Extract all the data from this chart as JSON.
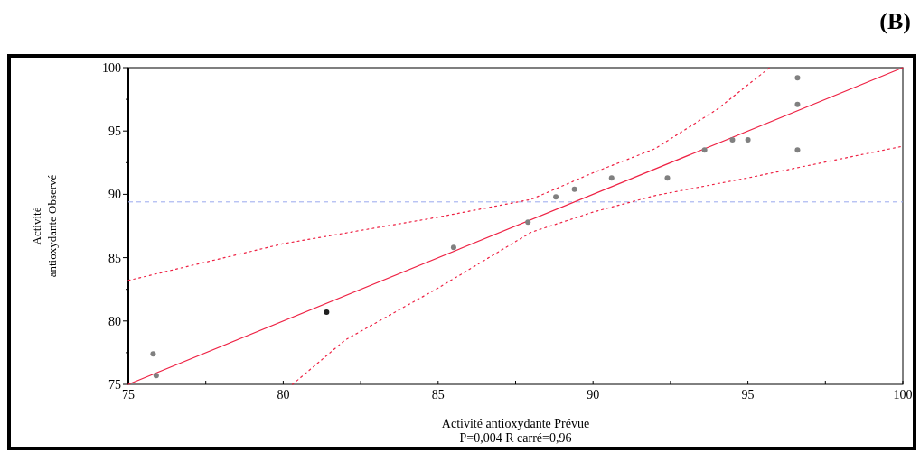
{
  "chart_data": {
    "type": "scatter",
    "xlabel": "Activité antioxydante Prévue",
    "ylabel": "Activité\nantioxydante Observé",
    "annotations": [
      "P=0,004 R carré=0,96",
      "(B)"
    ],
    "xlim": [
      75,
      100
    ],
    "ylim": [
      75,
      100
    ],
    "xticks": [
      75,
      {
        "value": 77.5,
        "label": null
      },
      80,
      {
        "value": 82.5,
        "label": null
      },
      85,
      {
        "value": 87.5,
        "label": null
      },
      90,
      {
        "value": 92.5,
        "label": null
      },
      95,
      {
        "value": 97.5,
        "label": null
      },
      100
    ],
    "yticks": [
      75,
      {
        "value": 77.5,
        "label": null
      },
      80,
      {
        "value": 82.5,
        "label": null
      },
      85,
      {
        "value": 87.5,
        "label": null
      },
      90,
      {
        "value": 92.5,
        "label": null
      },
      95,
      {
        "value": 97.5,
        "label": null
      },
      100
    ],
    "grid": false,
    "marker": "circle",
    "ref_lines": [
      {
        "axis": "y",
        "value": 89.4,
        "color": "#9aa8ee",
        "line_style": "dashed"
      }
    ],
    "series": [
      {
        "x": [
          75.8,
          75.9,
          81.4,
          85.5,
          87.9,
          88.8,
          89.4,
          90.6,
          92.4,
          93.6,
          94.5,
          95.0,
          96.6,
          96.6,
          96.6
        ],
        "values": [
          77.4,
          75.7,
          80.7,
          85.8,
          87.8,
          89.8,
          90.4,
          91.3,
          91.3,
          93.5,
          94.3,
          94.3,
          93.5,
          97.1,
          99.2
        ],
        "colors": [
          "#808080",
          "#808080",
          "#202020",
          "#808080",
          "#808080",
          "#808080",
          "#808080",
          "#808080",
          "#808080",
          "#808080",
          "#808080",
          "#808080",
          "#808080",
          "#808080",
          "#808080"
        ]
      },
      {
        "type": "line",
        "color": "#ee2244",
        "line_style": "solid",
        "marker": "none",
        "x": [
          75,
          100
        ],
        "values": [
          75,
          100
        ]
      },
      {
        "type": "line",
        "color": "#ee2244",
        "line_style": "dotted",
        "marker": "none",
        "x": [
          75,
          80,
          85,
          88,
          90,
          92,
          94,
          95.7
        ],
        "values": [
          83.2,
          86.1,
          88.2,
          89.6,
          91.7,
          93.6,
          96.7,
          100
        ]
      },
      {
        "type": "line",
        "color": "#ee2244",
        "line_style": "dotted",
        "marker": "none",
        "x": [
          80.3,
          82,
          85,
          88,
          90,
          92,
          95,
          97,
          100
        ],
        "values": [
          75,
          78.5,
          82.6,
          87.0,
          88.6,
          89.9,
          91.3,
          92.3,
          93.8
        ]
      }
    ]
  }
}
